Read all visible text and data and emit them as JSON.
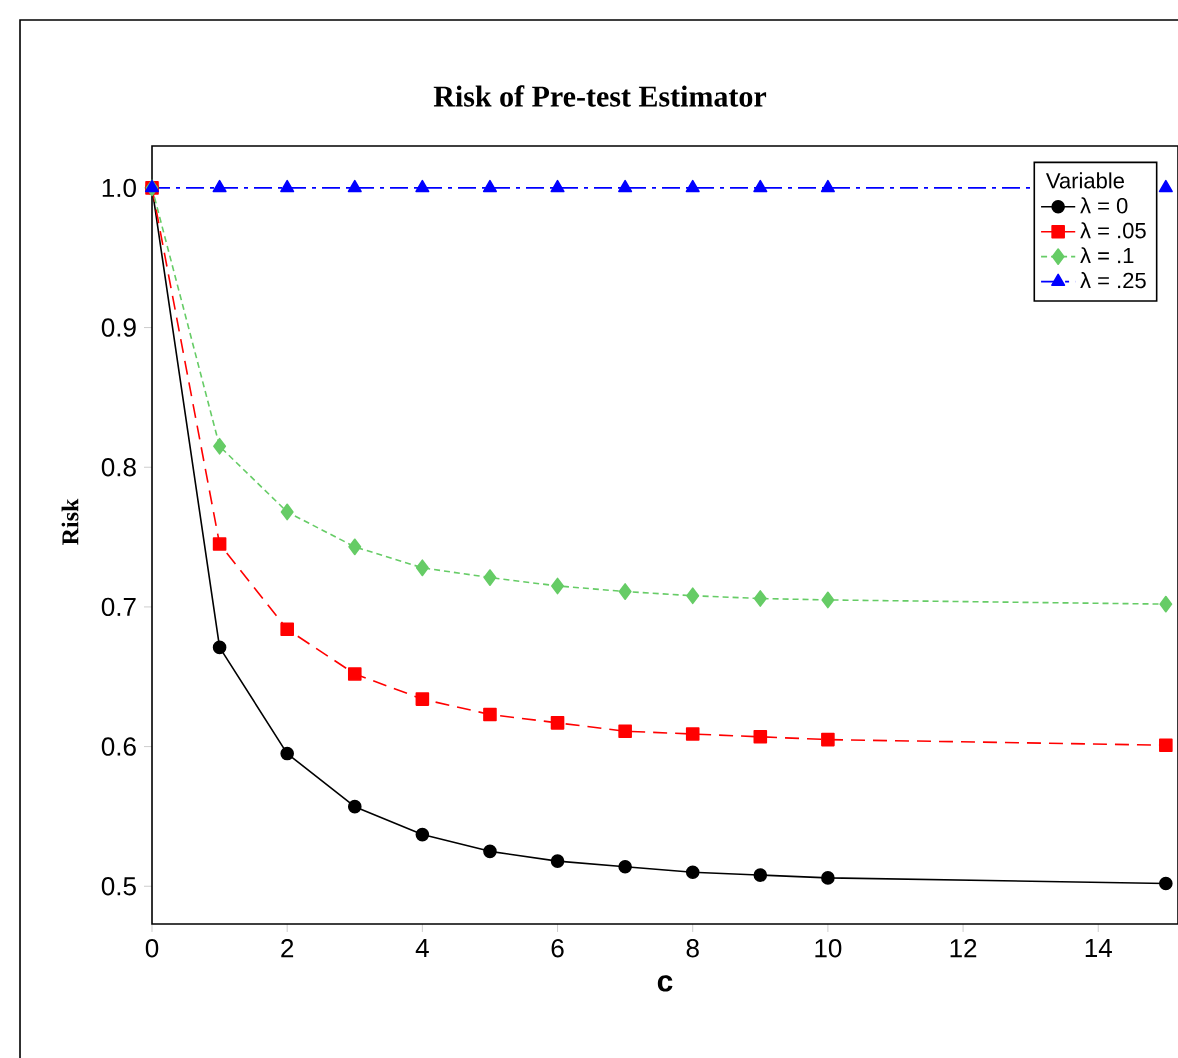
{
  "chart_data": {
    "type": "line",
    "title": "Risk of Pre-test Estimator",
    "xlabel": "c",
    "ylabel": "Risk",
    "legend_title": "Variable",
    "x": [
      0,
      1,
      2,
      3,
      4,
      5,
      6,
      7,
      8,
      9,
      10,
      15
    ],
    "series": [
      {
        "name": "λ = 0",
        "color": "#000000",
        "marker": "circle",
        "line_style": "solid",
        "values": [
          1.0,
          0.671,
          0.595,
          0.557,
          0.537,
          0.525,
          0.518,
          0.514,
          0.51,
          0.508,
          0.506,
          0.502
        ]
      },
      {
        "name": "λ = .05",
        "color": "#ff0000",
        "marker": "square",
        "line_style": "dashed",
        "values": [
          1.0,
          0.745,
          0.684,
          0.652,
          0.634,
          0.623,
          0.617,
          0.611,
          0.609,
          0.607,
          0.605,
          0.601
        ]
      },
      {
        "name": "λ = .1",
        "color": "#66cc66",
        "marker": "diamond",
        "line_style": "dotted",
        "values": [
          1.0,
          0.815,
          0.768,
          0.743,
          0.728,
          0.721,
          0.715,
          0.711,
          0.708,
          0.706,
          0.705,
          0.702
        ]
      },
      {
        "name": "λ = .25",
        "color": "#0000ff",
        "marker": "triangle",
        "line_style": "dashdot",
        "values": [
          1.0,
          1.0,
          1.0,
          1.0,
          1.0,
          1.0,
          1.0,
          1.0,
          1.0,
          1.0,
          1.0,
          1.0
        ]
      }
    ],
    "xlim": [
      0,
      15.18
    ],
    "ylim": [
      0.473,
      1.03
    ],
    "xticks": [
      0,
      2,
      4,
      6,
      8,
      10,
      12,
      14
    ],
    "yticks": [
      {
        "value": 0.5,
        "label": "0.5"
      },
      {
        "value": 0.6,
        "label": "0.6"
      },
      {
        "value": 0.7,
        "label": "0.7"
      },
      {
        "value": 0.8,
        "label": "0.8"
      },
      {
        "value": 0.9,
        "label": "0.9"
      },
      {
        "value": 1.0,
        "label": "1.0"
      }
    ],
    "grid": false,
    "legend": "top right"
  }
}
